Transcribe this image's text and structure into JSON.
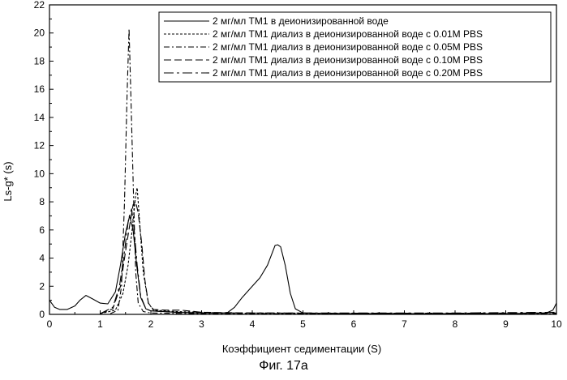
{
  "caption": "Фиг. 17а",
  "chart_data": {
    "type": "line",
    "xlabel": "Коэффициент седиментации (S)",
    "ylabel": "Ls-g* (s)",
    "xlim": [
      0,
      10
    ],
    "ylim": [
      0,
      22
    ],
    "xticks": [
      0,
      1,
      2,
      3,
      4,
      5,
      6,
      7,
      8,
      9,
      10
    ],
    "yticks": [
      0,
      2,
      4,
      6,
      8,
      10,
      12,
      14,
      16,
      18,
      20,
      22
    ],
    "grid": false,
    "legend_position": "top-right",
    "series": [
      {
        "name": "2 мг/мл ТМ1 в деионизированной воде",
        "dash": "solid",
        "points": [
          [
            0,
            1.0
          ],
          [
            0.1,
            0.5
          ],
          [
            0.2,
            0.35
          ],
          [
            0.35,
            0.35
          ],
          [
            0.5,
            0.6
          ],
          [
            0.6,
            1.0
          ],
          [
            0.72,
            1.35
          ],
          [
            0.85,
            1.1
          ],
          [
            1.0,
            0.8
          ],
          [
            1.15,
            0.75
          ],
          [
            1.3,
            1.6
          ],
          [
            1.4,
            3.5
          ],
          [
            1.5,
            5.8
          ],
          [
            1.58,
            7.0
          ],
          [
            1.65,
            6.0
          ],
          [
            1.72,
            3.5
          ],
          [
            1.8,
            1.2
          ],
          [
            1.9,
            0.4
          ],
          [
            2.0,
            0.25
          ],
          [
            2.5,
            0.15
          ],
          [
            3.0,
            0.1
          ],
          [
            3.5,
            0.1
          ],
          [
            3.65,
            0.5
          ],
          [
            3.8,
            1.2
          ],
          [
            4.0,
            2.0
          ],
          [
            4.15,
            2.6
          ],
          [
            4.3,
            3.5
          ],
          [
            4.45,
            4.9
          ],
          [
            4.5,
            4.95
          ],
          [
            4.56,
            4.8
          ],
          [
            4.65,
            3.5
          ],
          [
            4.75,
            1.5
          ],
          [
            4.85,
            0.4
          ],
          [
            5.0,
            0.1
          ],
          [
            6,
            0.05
          ],
          [
            7,
            0.05
          ],
          [
            8,
            0.05
          ],
          [
            9,
            0.05
          ],
          [
            9.8,
            0.1
          ],
          [
            9.93,
            0.3
          ],
          [
            10,
            0.8
          ]
        ]
      },
      {
        "name": "2 мг/мл ТМ1 диализ в деионизированной воде с 0.01M PBS",
        "dash": "short-dash",
        "points": [
          [
            1.0,
            0.05
          ],
          [
            1.3,
            0.3
          ],
          [
            1.45,
            1.5
          ],
          [
            1.55,
            3.5
          ],
          [
            1.63,
            6.0
          ],
          [
            1.7,
            8.5
          ],
          [
            1.73,
            9.0
          ],
          [
            1.77,
            7.0
          ],
          [
            1.85,
            3.0
          ],
          [
            1.95,
            0.8
          ],
          [
            2.05,
            0.3
          ],
          [
            2.5,
            0.2
          ],
          [
            3,
            0.15
          ],
          [
            3.5,
            0.1
          ],
          [
            4,
            0.08
          ],
          [
            5,
            0.05
          ],
          [
            6,
            0.05
          ],
          [
            8,
            0.05
          ],
          [
            10,
            0.05
          ]
        ]
      },
      {
        "name": "2 мг/мл ТМ1 диализ в деионизированной воде с 0.05M PBS",
        "dash": "dash-dot",
        "points": [
          [
            1.2,
            0.05
          ],
          [
            1.35,
            0.3
          ],
          [
            1.42,
            2.0
          ],
          [
            1.48,
            8.0
          ],
          [
            1.53,
            15.5
          ],
          [
            1.57,
            20.3
          ],
          [
            1.61,
            15.0
          ],
          [
            1.66,
            8.0
          ],
          [
            1.7,
            3.0
          ],
          [
            1.75,
            0.8
          ],
          [
            1.85,
            0.2
          ],
          [
            2.0,
            0.1
          ],
          [
            3,
            0.05
          ],
          [
            5,
            0.05
          ],
          [
            10,
            0.05
          ]
        ]
      },
      {
        "name": "2 мг/мл ТМ1 диализ в деионизированной воде с 0.10M PBS",
        "dash": "long-dash",
        "points": [
          [
            1.0,
            0.05
          ],
          [
            1.25,
            0.4
          ],
          [
            1.4,
            2.0
          ],
          [
            1.5,
            4.5
          ],
          [
            1.58,
            6.3
          ],
          [
            1.65,
            7.8
          ],
          [
            1.7,
            8.0
          ],
          [
            1.75,
            7.2
          ],
          [
            1.82,
            5.0
          ],
          [
            1.88,
            2.5
          ],
          [
            1.95,
            0.8
          ],
          [
            2.05,
            0.35
          ],
          [
            2.3,
            0.3
          ],
          [
            2.6,
            0.3
          ],
          [
            3.0,
            0.15
          ],
          [
            4,
            0.1
          ],
          [
            6,
            0.08
          ],
          [
            8,
            0.08
          ],
          [
            10,
            0.1
          ]
        ]
      },
      {
        "name": "2 мг/мл ТМ1 диализ в деионизированной воде с 0.20M PBS",
        "dash": "long-dash-dot",
        "points": [
          [
            1.0,
            0.05
          ],
          [
            1.25,
            0.5
          ],
          [
            1.38,
            2.0
          ],
          [
            1.48,
            4.5
          ],
          [
            1.56,
            6.8
          ],
          [
            1.62,
            7.5
          ],
          [
            1.67,
            6.0
          ],
          [
            1.73,
            3.5
          ],
          [
            1.8,
            1.3
          ],
          [
            1.9,
            0.4
          ],
          [
            2.0,
            0.25
          ],
          [
            2.5,
            0.15
          ],
          [
            3,
            0.1
          ],
          [
            4,
            0.1
          ],
          [
            6,
            0.1
          ],
          [
            8,
            0.1
          ],
          [
            10,
            0.15
          ]
        ]
      }
    ]
  }
}
